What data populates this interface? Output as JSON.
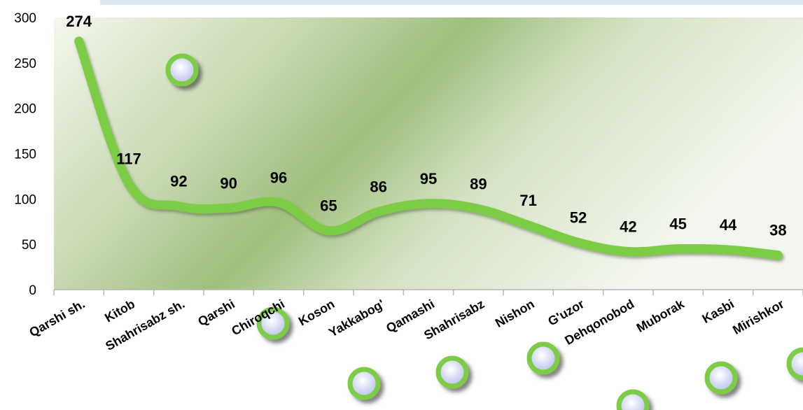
{
  "chart_data": {
    "type": "line",
    "categories": [
      "Qarshi sh.",
      "Kitob",
      "Shahrisabz sh.",
      "Qarshi",
      "Chiroqchi",
      "Koson",
      "Yakkabog'",
      "Qamashi",
      "Shahrisabz",
      "Nishon",
      "G'uzor",
      "Dehqonobod",
      "Muborak",
      "Kasbi",
      "Mirishkor"
    ],
    "values": [
      274,
      117,
      92,
      90,
      96,
      65,
      86,
      95,
      89,
      71,
      52,
      42,
      45,
      44,
      38
    ],
    "ylim": [
      0,
      300
    ],
    "yticks": [
      0,
      50,
      100,
      150,
      200,
      250,
      300
    ],
    "grid": false,
    "title": "",
    "xlabel": "",
    "ylabel": ""
  },
  "colors": {
    "line": "#7dcc45",
    "background_light": "#eef3e4",
    "background_mid": "#a8c38c",
    "band": "#dbe7f2",
    "marker_ring": "#7dcc45",
    "marker_fill": "#d7dcf5"
  },
  "decorations": {
    "marker_icon": "green-ring-bubble"
  }
}
